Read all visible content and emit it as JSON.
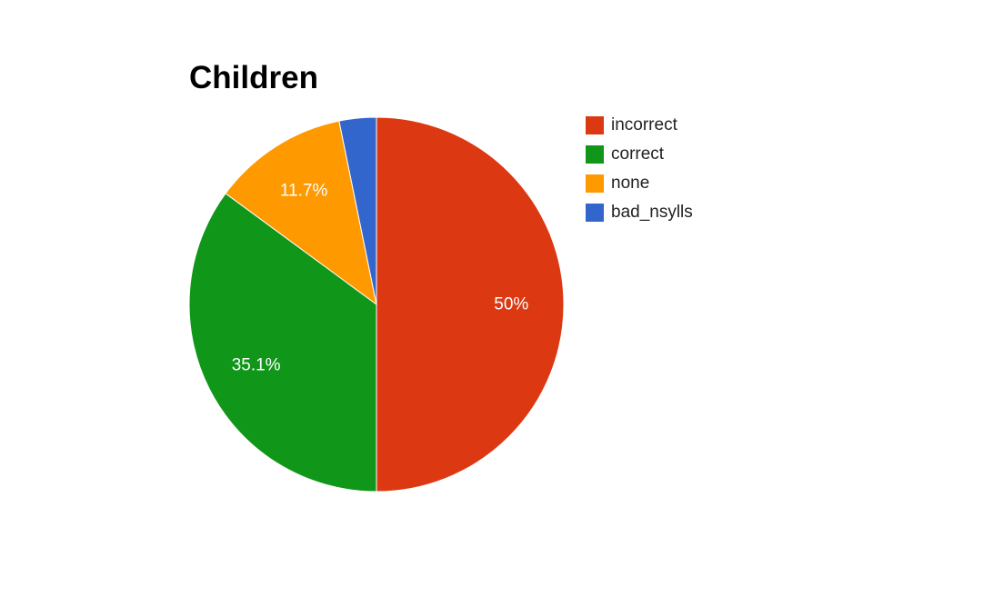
{
  "chart_data": {
    "type": "pie",
    "title": "Children",
    "legend_position": "right",
    "slices": [
      {
        "name": "incorrect",
        "value": 50.0,
        "label": "50%",
        "color": "#dc3912"
      },
      {
        "name": "correct",
        "value": 35.1,
        "label": "35.1%",
        "color": "#109618"
      },
      {
        "name": "none",
        "value": 11.7,
        "label": "11.7%",
        "color": "#ff9900"
      },
      {
        "name": "bad_nsylls",
        "value": 3.2,
        "label": "",
        "color": "#3366cc"
      }
    ]
  }
}
